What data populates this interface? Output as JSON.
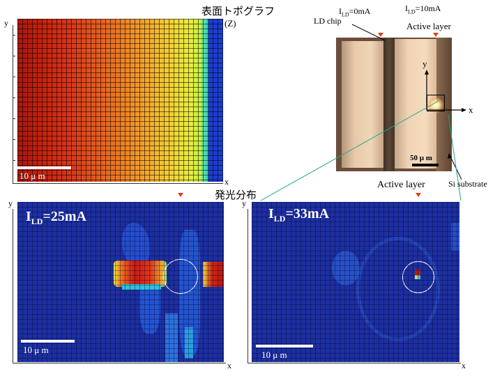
{
  "topo": {
    "title": "表面トポグラフ",
    "z_label": "(Z)",
    "y_label": "y",
    "x_label": "x",
    "scale_label": "10 μ m"
  },
  "photo": {
    "current_left": "I",
    "current_left_sub": "LD",
    "current_left_val": "=0mA",
    "current_right": "I",
    "current_right_sub": "LD",
    "current_right_val": "=10mA",
    "ld_chip_label": "LD chip",
    "active_layer_label": "Active layer",
    "y_label": "y",
    "x_label": "x",
    "scale_label": "50 μ m",
    "substrate_label": "Si substrate"
  },
  "emission": {
    "title": "発光分布",
    "active_layer_label": "Active layer",
    "left": {
      "current": "I",
      "current_sub": "LD",
      "current_val": "=25mA",
      "y_label": "y",
      "x_label": "x",
      "scale_label": "10 μ m"
    },
    "right": {
      "current": "I",
      "current_sub": "LD",
      "current_val": "=33mA",
      "y_label": "y",
      "x_label": "x",
      "scale_label": "10 μ m"
    }
  },
  "colors": {
    "map_background": "#1d2fa0",
    "marker": "#d9401e",
    "connector": "#1aa88a"
  }
}
